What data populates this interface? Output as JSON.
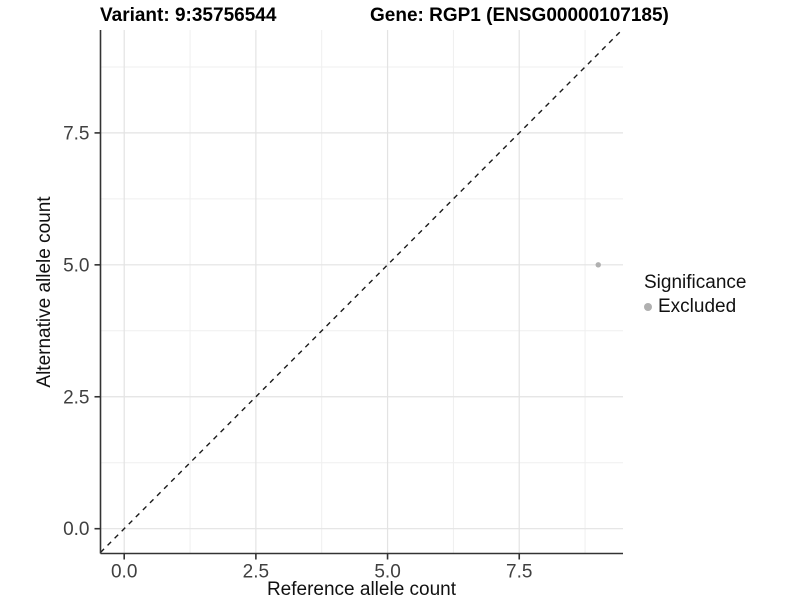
{
  "chart_data": {
    "type": "scatter",
    "title_variant": "Variant: 9:35756544",
    "title_gene": "Gene: RGP1 (ENSG00000107185)",
    "xlabel": "Reference allele count",
    "ylabel": "Alternative allele count",
    "xlim": [
      -0.45,
      9.47
    ],
    "ylim": [
      -0.47,
      9.45
    ],
    "x_ticks": [
      0.0,
      2.5,
      5.0,
      7.5
    ],
    "y_ticks": [
      0.0,
      2.5,
      5.0,
      7.5
    ],
    "x_tick_labels": [
      "0.0",
      "2.5",
      "5.0",
      "7.5"
    ],
    "y_tick_labels": [
      "0.0",
      "2.5",
      "5.0",
      "7.5"
    ],
    "grid_major_at": [
      0,
      2.5,
      5,
      7.5
    ],
    "grid_minor_at": [
      1.25,
      3.75,
      6.25,
      8.75
    ],
    "grid": true,
    "abline": {
      "slope": 1,
      "intercept": 0,
      "style": "dashed"
    },
    "series": [
      {
        "name": "Excluded",
        "color": "#b0b0b0",
        "points": [
          {
            "x": 9,
            "y": 5
          }
        ]
      }
    ],
    "legend_position": "right"
  },
  "legend": {
    "title": "Significance",
    "items": [
      {
        "label": "Excluded",
        "color": "#b0b0b0"
      }
    ]
  },
  "colors": {
    "background": "#ffffff",
    "grid_major": "#e3e3e3",
    "grid_minor": "#efefef",
    "axis_line": "#333333",
    "tick_mark": "#333333",
    "tick_label": "#404040",
    "abline": "#1a1a1a",
    "point": "#b0b0b0"
  }
}
